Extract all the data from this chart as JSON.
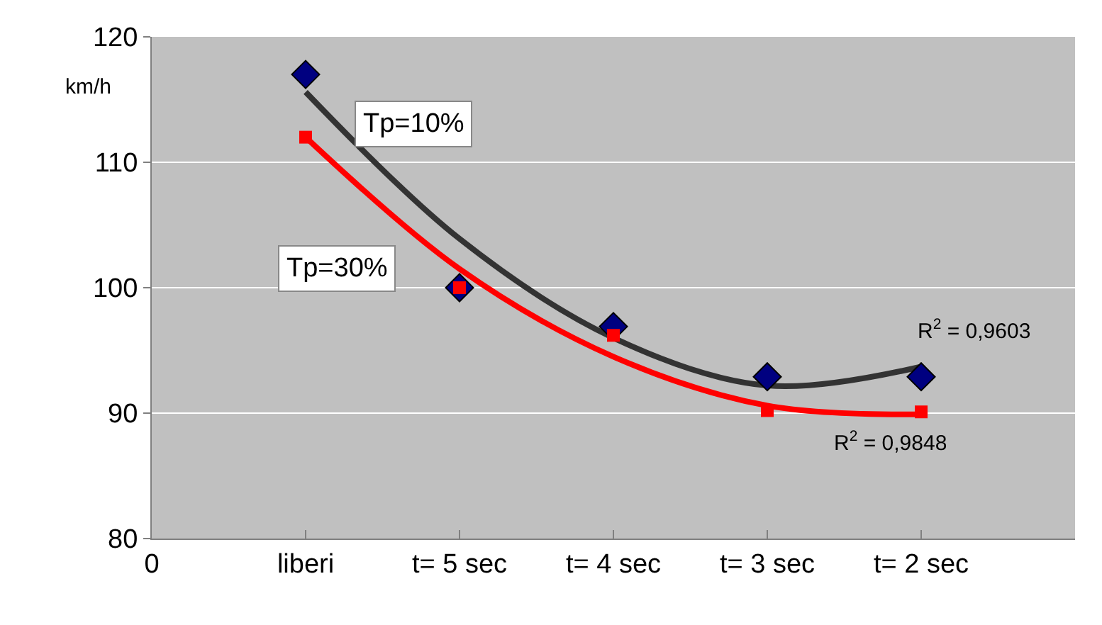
{
  "chart_data": {
    "type": "scatter",
    "ylabel": "km/h",
    "categories": [
      "0",
      "liberi",
      "t= 5 sec",
      "t= 4 sec",
      "t= 3 sec",
      "t= 2 sec",
      null
    ],
    "ylim": [
      80,
      120
    ],
    "yticks": [
      80,
      90,
      100,
      110,
      120
    ],
    "grid": "y",
    "series": [
      {
        "type": "line",
        "color": "#333333",
        "marker": "none",
        "values": [
          null,
          115.6,
          103.9,
          96,
          92.2,
          93.7,
          null
        ]
      },
      {
        "type": "line",
        "color": "#ff0000",
        "marker": "none",
        "values": [
          null,
          112,
          101.5,
          94.5,
          90.6,
          89.9,
          null
        ]
      },
      {
        "color": "#000080",
        "marker": "diamond",
        "values": [
          null,
          117,
          100,
          96.9,
          92.9,
          92.9,
          null
        ]
      },
      {
        "color": "#ff0000",
        "marker": "square",
        "values": [
          null,
          112,
          100,
          96.2,
          90.2,
          90.1,
          null
        ]
      }
    ],
    "annotations": [
      "Tp=10%",
      "Tp=30%",
      "R$^{2}$ = 0,9603",
      "R$^{2}$ = 0,9848"
    ]
  }
}
